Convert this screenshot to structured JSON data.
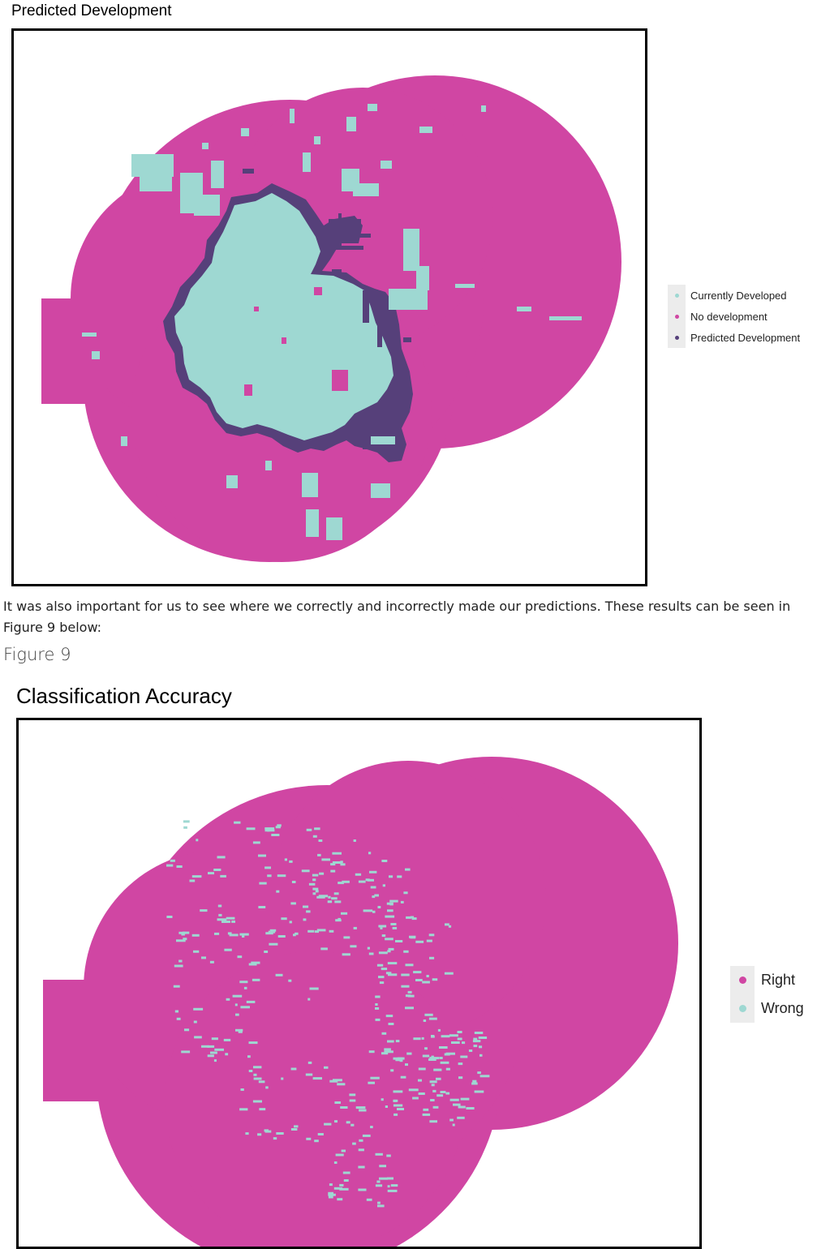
{
  "figure_top": {
    "title": "Predicted Development",
    "legend": [
      {
        "label": "Currently Developed",
        "color": "#9ed8d2"
      },
      {
        "label": "No development",
        "color": "#d046a3"
      },
      {
        "label": "Predicted Development",
        "color": "#56407a"
      }
    ]
  },
  "paragraph": "It was also important for us to see where we correctly and incorrectly made our predictions. These results can be seen in Figure 9 below:",
  "caption": "Figure 9",
  "figure_bottom": {
    "title": "Classification Accuracy",
    "legend": [
      {
        "label": "Right",
        "color": "#d046a3"
      },
      {
        "label": "Wrong",
        "color": "#9ed8d2"
      }
    ]
  }
}
